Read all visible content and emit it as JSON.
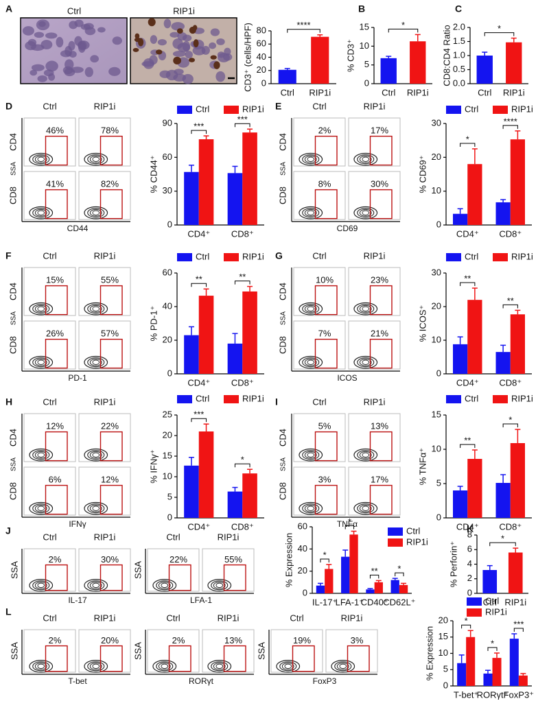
{
  "histology": {
    "letter": "A",
    "labels": [
      "Ctrl",
      "RIP1i"
    ]
  },
  "flow": [
    {
      "letter": "D",
      "y_label": "SSA",
      "rows": [
        "CD4",
        "CD8"
      ],
      "groups": [
        {
          "x_label": "CD44",
          "cols": [
            "Ctrl",
            "RIP1i"
          ],
          "gates": [
            [
              "46%",
              "78%"
            ],
            [
              "41%",
              "82%"
            ]
          ]
        }
      ]
    },
    {
      "letter": "E",
      "y_label": "SSA",
      "rows": [
        "CD4",
        "CD8"
      ],
      "groups": [
        {
          "x_label": "CD69",
          "cols": [
            "Ctrl",
            "RIP1i"
          ],
          "gates": [
            [
              "2%",
              "17%"
            ],
            [
              "8%",
              "30%"
            ]
          ]
        }
      ]
    },
    {
      "letter": "F",
      "y_label": "SSA",
      "rows": [
        "CD4",
        "CD8"
      ],
      "groups": [
        {
          "x_label": "PD-1",
          "cols": [
            "Ctrl",
            "RIP1i"
          ],
          "gates": [
            [
              "15%",
              "55%"
            ],
            [
              "26%",
              "57%"
            ]
          ]
        }
      ]
    },
    {
      "letter": "G",
      "y_label": "SSA",
      "rows": [
        "CD4",
        "CD8"
      ],
      "groups": [
        {
          "x_label": "ICOS",
          "cols": [
            "Ctrl",
            "RIP1i"
          ],
          "gates": [
            [
              "10%",
              "23%"
            ],
            [
              "7%",
              "21%"
            ]
          ]
        }
      ]
    },
    {
      "letter": "H",
      "y_label": "SSA",
      "rows": [
        "CD4",
        "CD8"
      ],
      "groups": [
        {
          "x_label": "IFNγ",
          "cols": [
            "Ctrl",
            "RIP1i"
          ],
          "gates": [
            [
              "12%",
              "22%"
            ],
            [
              "6%",
              "12%"
            ]
          ]
        }
      ]
    },
    {
      "letter": "I",
      "y_label": "SSA",
      "rows": [
        "CD4",
        "CD8"
      ],
      "groups": [
        {
          "x_label": "TNFα",
          "cols": [
            "Ctrl",
            "RIP1i"
          ],
          "gates": [
            [
              "5%",
              "13%"
            ],
            [
              "3%",
              "17%"
            ]
          ]
        }
      ]
    },
    {
      "letter": "J",
      "y_label": "SSA",
      "groups": [
        {
          "x_label": "IL-17",
          "cols": [
            "Ctrl",
            "RIP1i"
          ],
          "gates": [
            [
              "2%",
              "30%"
            ]
          ]
        },
        {
          "x_label": "LFA-1",
          "cols": [
            "Ctrl",
            "RIP1i"
          ],
          "gates": [
            [
              "22%",
              "55%"
            ]
          ]
        }
      ]
    },
    {
      "letter": "L",
      "y_label": "SSA",
      "groups": [
        {
          "x_label": "T-bet",
          "cols": [
            "Ctrl",
            "RIP1i"
          ],
          "gates": [
            [
              "2%",
              "20%"
            ]
          ]
        },
        {
          "x_label": "RORγt",
          "cols": [
            "Ctrl",
            "RIP1i"
          ],
          "gates": [
            [
              "2%",
              "13%"
            ]
          ]
        },
        {
          "x_label": "FoxP3",
          "cols": [
            "Ctrl",
            "RIP1i"
          ],
          "gates": [
            [
              "19%",
              "3%"
            ]
          ]
        }
      ]
    }
  ],
  "chart_data": [
    {
      "type": "bar",
      "y_label": "CD3⁺ (cells/HPF)",
      "categories": [
        "Ctrl",
        "RIP1i"
      ],
      "values": [
        21,
        71
      ],
      "errors": [
        2,
        3
      ],
      "colors": [
        "#1414f0",
        "#f01414"
      ],
      "ylim": [
        0,
        80
      ],
      "yticks": [
        0,
        20,
        40,
        60,
        80
      ],
      "significance": [
        "****"
      ]
    },
    {
      "type": "bar",
      "letter": "B",
      "y_label": "% CD3⁺",
      "categories": [
        "Ctrl",
        "RIP1i"
      ],
      "values": [
        6.8,
        11.3
      ],
      "errors": [
        0.5,
        1.8
      ],
      "colors": [
        "#1414f0",
        "#f01414"
      ],
      "ylim": [
        0,
        15
      ],
      "yticks": [
        0,
        5,
        10,
        15
      ],
      "significance": [
        "*"
      ]
    },
    {
      "type": "bar",
      "letter": "C",
      "y_label": "CD8:CD4 Ratio",
      "categories": [
        "Ctrl",
        "RIP1i"
      ],
      "values": [
        1.0,
        1.47
      ],
      "errors": [
        0.12,
        0.15
      ],
      "colors": [
        "#1414f0",
        "#f01414"
      ],
      "ylim": [
        0,
        2
      ],
      "yticks": [
        {
          "value": 0,
          "label": "0.0"
        },
        {
          "value": 0.5,
          "label": "0.5"
        },
        {
          "value": 1,
          "label": "1.0"
        },
        {
          "value": 1.5,
          "label": "1.5"
        },
        {
          "value": 2,
          "label": "2.0"
        }
      ],
      "significance": [
        "*"
      ]
    },
    {
      "type": "bar",
      "y_label": "% CD44⁺",
      "categories": [
        "CD4⁺",
        "CD8⁺"
      ],
      "series": [
        {
          "name": "Ctrl",
          "color": "#1414f0",
          "values": [
            47,
            46
          ],
          "errors": [
            6,
            6
          ]
        },
        {
          "name": "RIP1i",
          "color": "#f01414",
          "values": [
            76,
            82
          ],
          "errors": [
            3,
            3
          ]
        }
      ],
      "ylim": [
        0,
        90
      ],
      "yticks": [
        0,
        30,
        60,
        90
      ],
      "significance": [
        "***",
        "***"
      ]
    },
    {
      "type": "bar",
      "y_label": "% CD69⁺",
      "categories": [
        "CD4⁺",
        "CD8⁺"
      ],
      "series": [
        {
          "name": "Ctrl",
          "color": "#1414f0",
          "values": [
            3.3,
            6.7
          ],
          "errors": [
            1.5,
            0.8
          ]
        },
        {
          "name": "RIP1i",
          "color": "#f01414",
          "values": [
            18,
            25.3
          ],
          "errors": [
            4.5,
            2.5
          ]
        }
      ],
      "ylim": [
        0,
        30
      ],
      "yticks": [
        0,
        10,
        20,
        30
      ],
      "significance": [
        "*",
        "****"
      ]
    },
    {
      "type": "bar",
      "y_label": "% PD-1⁺",
      "categories": [
        "CD4⁺",
        "CD8⁺"
      ],
      "series": [
        {
          "name": "Ctrl",
          "color": "#1414f0",
          "values": [
            23,
            18
          ],
          "errors": [
            5,
            6
          ]
        },
        {
          "name": "RIP1i",
          "color": "#f01414",
          "values": [
            46.5,
            49
          ],
          "errors": [
            4,
            3
          ]
        }
      ],
      "ylim": [
        0,
        60
      ],
      "yticks": [
        0,
        20,
        40,
        60
      ],
      "significance": [
        "**",
        "**"
      ]
    },
    {
      "type": "bar",
      "y_label": "% ICOS⁺",
      "categories": [
        "CD4⁺",
        "CD8⁺"
      ],
      "series": [
        {
          "name": "Ctrl",
          "color": "#1414f0",
          "values": [
            8.8,
            6.5
          ],
          "errors": [
            2.2,
            2
          ]
        },
        {
          "name": "RIP1i",
          "color": "#f01414",
          "values": [
            22,
            17.7
          ],
          "errors": [
            3.5,
            1.2
          ]
        }
      ],
      "ylim": [
        0,
        30
      ],
      "yticks": [
        0,
        10,
        20,
        30
      ],
      "significance": [
        "**",
        "**"
      ]
    },
    {
      "type": "bar",
      "y_label": "% IFNγ⁺",
      "categories": [
        "CD4⁺",
        "CD8⁺"
      ],
      "series": [
        {
          "name": "Ctrl",
          "color": "#1414f0",
          "values": [
            12.7,
            6.4
          ],
          "errors": [
            2,
            1
          ]
        },
        {
          "name": "RIP1i",
          "color": "#f01414",
          "values": [
            21,
            10.8
          ],
          "errors": [
            1.8,
            1
          ]
        }
      ],
      "ylim": [
        0,
        25
      ],
      "yticks": [
        0,
        5,
        10,
        15,
        20,
        25
      ],
      "significance": [
        "***",
        "*"
      ]
    },
    {
      "type": "bar",
      "y_label": "% TNFα⁺",
      "categories": [
        "CD4⁺",
        "CD8⁺"
      ],
      "series": [
        {
          "name": "Ctrl",
          "color": "#1414f0",
          "values": [
            4,
            5.1
          ],
          "errors": [
            0.6,
            1.2
          ]
        },
        {
          "name": "RIP1i",
          "color": "#f01414",
          "values": [
            8.6,
            10.9
          ],
          "errors": [
            1.3,
            2
          ]
        }
      ],
      "ylim": [
        0,
        15
      ],
      "yticks": [
        0,
        5,
        10,
        15
      ],
      "significance": [
        "**",
        "*"
      ]
    },
    {
      "type": "bar",
      "y_label": "% Expression",
      "categories": [
        "IL-17⁺",
        "LFA-1⁺",
        "CD40⁺",
        "CD62L⁺"
      ],
      "series": [
        {
          "name": "Ctrl",
          "color": "#1414f0",
          "values": [
            7,
            33,
            3.5,
            12
          ],
          "errors": [
            2,
            6,
            0.8,
            1.5
          ]
        },
        {
          "name": "RIP1i",
          "color": "#f01414",
          "values": [
            22,
            53,
            10,
            7.5
          ],
          "errors": [
            4,
            3,
            1.5,
            1.5
          ]
        }
      ],
      "ylim": [
        0,
        60
      ],
      "yticks": [
        0,
        20,
        40,
        60
      ],
      "significance": [
        "*",
        "*",
        "**",
        "*"
      ]
    },
    {
      "type": "bar",
      "letter": "K",
      "y_label": "% Perforin⁺",
      "categories": [
        "Ctrl",
        "RIP1i"
      ],
      "values": [
        3.2,
        5.6
      ],
      "errors": [
        0.6,
        0.6
      ],
      "colors": [
        "#1414f0",
        "#f01414"
      ],
      "ylim": [
        0,
        8
      ],
      "yticks": [
        0,
        2,
        4,
        6,
        8
      ],
      "significance": [
        "*"
      ]
    },
    {
      "type": "bar",
      "y_label": "% Expression",
      "categories": [
        "T-bet⁺",
        "RORγt⁺",
        "FoxP3⁺"
      ],
      "series": [
        {
          "name": "Ctrl",
          "color": "#1414f0",
          "values": [
            7,
            3.8,
            14.5
          ],
          "errors": [
            2.5,
            1,
            1.5
          ]
        },
        {
          "name": "RIP1i",
          "color": "#f01414",
          "values": [
            15,
            8.6,
            3.2
          ],
          "errors": [
            2,
            1.5,
            0.6
          ]
        }
      ],
      "ylim": [
        0,
        20
      ],
      "yticks": [
        0,
        5,
        10,
        15,
        20
      ],
      "significance": [
        "*",
        "*",
        "***"
      ]
    }
  ]
}
